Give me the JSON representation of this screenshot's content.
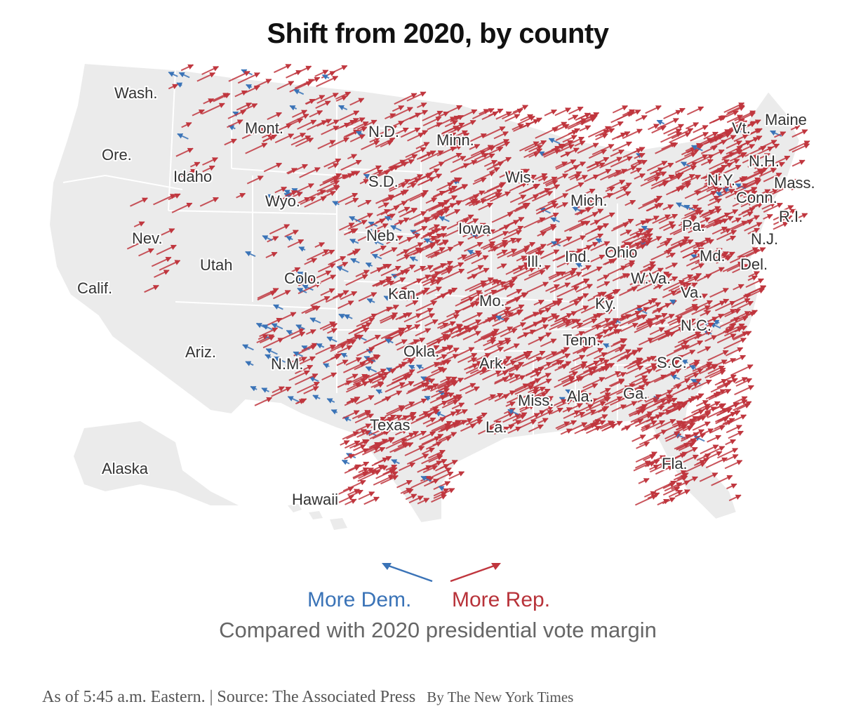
{
  "title": "Shift from 2020, by county",
  "colors": {
    "dem": "#3a73b7",
    "rep": "#c0363e",
    "land": "#ebebeb",
    "border": "#ffffff"
  },
  "states": [
    {
      "name": "Wash."
    },
    {
      "name": "Mont."
    },
    {
      "name": "N.D."
    },
    {
      "name": "Minn."
    },
    {
      "name": "Ore."
    },
    {
      "name": "Idaho"
    },
    {
      "name": "S.D."
    },
    {
      "name": "Wis."
    },
    {
      "name": "Wyo."
    },
    {
      "name": "Mich."
    },
    {
      "name": "Nev."
    },
    {
      "name": "Neb."
    },
    {
      "name": "Iowa"
    },
    {
      "name": "Utah"
    },
    {
      "name": "Colo."
    },
    {
      "name": "Ill."
    },
    {
      "name": "Ind."
    },
    {
      "name": "Ohio"
    },
    {
      "name": "Calif."
    },
    {
      "name": "Kan."
    },
    {
      "name": "Mo."
    },
    {
      "name": "Ky."
    },
    {
      "name": "W.Va."
    },
    {
      "name": "Va."
    },
    {
      "name": "Pa."
    },
    {
      "name": "Md."
    },
    {
      "name": "Del."
    },
    {
      "name": "N.J."
    },
    {
      "name": "Tenn."
    },
    {
      "name": "N.C."
    },
    {
      "name": "Ariz."
    },
    {
      "name": "N.M."
    },
    {
      "name": "Okla."
    },
    {
      "name": "Ark."
    },
    {
      "name": "S.C."
    },
    {
      "name": "Miss."
    },
    {
      "name": "Ala."
    },
    {
      "name": "Ga."
    },
    {
      "name": "Texas"
    },
    {
      "name": "La."
    },
    {
      "name": "Fla."
    },
    {
      "name": "Alaska"
    },
    {
      "name": "Hawaii"
    },
    {
      "name": "Vt."
    },
    {
      "name": "Maine"
    },
    {
      "name": "N.H."
    },
    {
      "name": "N.Y."
    },
    {
      "name": "Mass."
    },
    {
      "name": "Conn."
    },
    {
      "name": "R.I."
    }
  ],
  "legend": {
    "dem_label": "More Dem.",
    "rep_label": "More Rep.",
    "caption": "Compared with 2020 presidential vote margin"
  },
  "footer": {
    "note": "As of 5:45 a.m. Eastern. | Source: The Associated Press",
    "credit": "By The New York Times"
  }
}
